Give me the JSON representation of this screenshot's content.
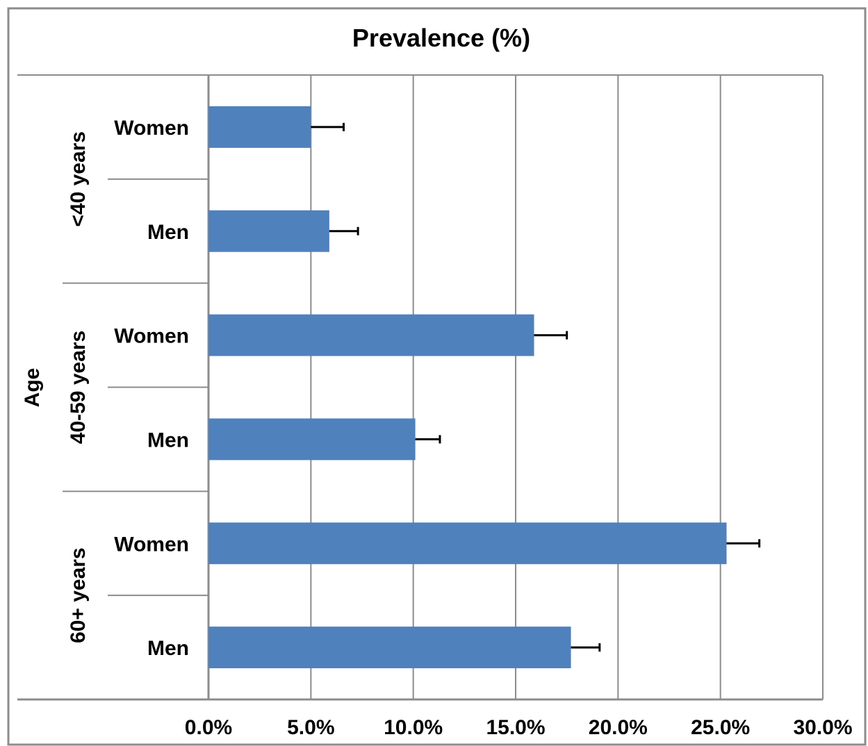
{
  "chart_data": {
    "type": "bar",
    "orientation": "horizontal",
    "title": "Prevalence (%)",
    "ylabel": "Age",
    "groups": [
      {
        "label": "<40 years",
        "categories": [
          "Women",
          "Men"
        ]
      },
      {
        "label": "40-59 years",
        "categories": [
          "Women",
          "Men"
        ]
      },
      {
        "label": "60+ years",
        "categories": [
          "Women",
          "Men"
        ]
      }
    ],
    "bars": [
      {
        "group": "<40 years",
        "category": "Women",
        "value": 5.0,
        "error": 1.6
      },
      {
        "group": "<40 years",
        "category": "Men",
        "value": 5.9,
        "error": 1.4
      },
      {
        "group": "40-59 years",
        "category": "Women",
        "value": 15.9,
        "error": 1.6
      },
      {
        "group": "40-59 years",
        "category": "Men",
        "value": 10.1,
        "error": 1.2
      },
      {
        "group": "60+ years",
        "category": "Women",
        "value": 25.3,
        "error": 1.6
      },
      {
        "group": "60+ years",
        "category": "Men",
        "value": 17.7,
        "error": 1.4
      }
    ],
    "xlim": [
      0,
      30
    ],
    "xticks": [
      0,
      5,
      10,
      15,
      20,
      25,
      30
    ],
    "xtick_labels": [
      "0.0%",
      "5.0%",
      "10.0%",
      "15.0%",
      "20.0%",
      "25.0%",
      "30.0%"
    ],
    "grid": true,
    "bar_color": "#4f81bd",
    "error_bar_color": "#000000",
    "grid_color": "#8c8c8c"
  }
}
